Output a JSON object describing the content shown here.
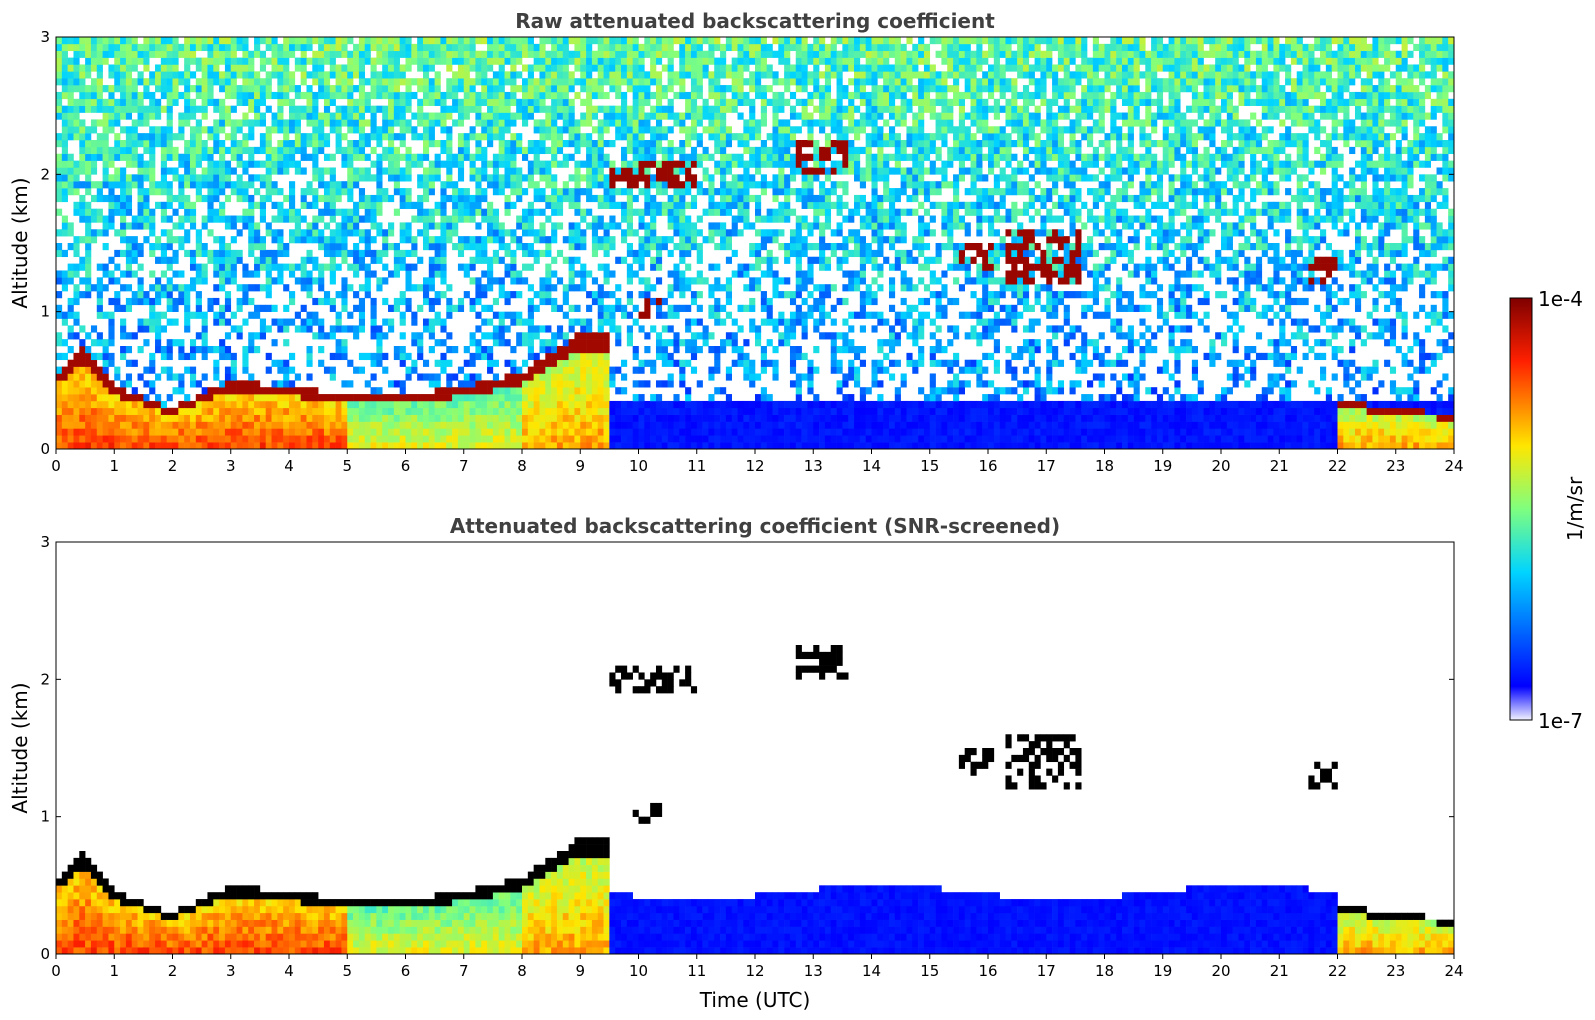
{
  "chart_data": [
    {
      "type": "heatmap",
      "title": "Raw attenuated backscattering coefficient",
      "xlabel": "",
      "ylabel": "Altitude (km)",
      "xlim": [
        0,
        24
      ],
      "ylim": [
        0,
        3
      ],
      "xticks": [
        "0",
        "1",
        "2",
        "3",
        "4",
        "5",
        "6",
        "7",
        "8",
        "9",
        "10",
        "11",
        "12",
        "13",
        "14",
        "15",
        "16",
        "17",
        "18",
        "19",
        "20",
        "21",
        "22",
        "23",
        "24"
      ],
      "yticks": [
        "0",
        "1",
        "2",
        "3"
      ],
      "screened": false,
      "features": [
        {
          "kind": "boundary_layer_top",
          "points": [
            [
              0,
              0.55
            ],
            [
              0.5,
              0.75
            ],
            [
              1,
              0.45
            ],
            [
              2,
              0.3
            ],
            [
              3,
              0.5
            ],
            [
              4,
              0.45
            ],
            [
              5,
              0.4
            ],
            [
              6,
              0.4
            ],
            [
              7,
              0.45
            ],
            [
              8,
              0.55
            ],
            [
              8.5,
              0.7
            ],
            [
              9,
              0.85
            ],
            [
              9.5,
              0.0
            ]
          ]
        },
        {
          "kind": "cloud_layer",
          "x": [
            9.5,
            11.0
          ],
          "y": [
            1.9,
            2.1
          ]
        },
        {
          "kind": "cloud_layer",
          "x": [
            12.7,
            13.6
          ],
          "y": [
            2.0,
            2.25
          ]
        },
        {
          "kind": "cloud_layer",
          "x": [
            16.3,
            17.6
          ],
          "y": [
            1.2,
            1.6
          ]
        },
        {
          "kind": "cloud_layer",
          "x": [
            21.5,
            22.0
          ],
          "y": [
            1.2,
            1.4
          ]
        },
        {
          "kind": "boundary_layer_top",
          "points": [
            [
              22,
              0.35
            ],
            [
              23,
              0.35
            ],
            [
              24,
              0.25
            ]
          ]
        }
      ]
    },
    {
      "type": "heatmap",
      "title": "Attenuated backscattering coefficient (SNR-screened)",
      "xlabel": "Time (UTC)",
      "ylabel": "Altitude (km)",
      "xlim": [
        0,
        24
      ],
      "ylim": [
        0,
        3
      ],
      "xticks": [
        "0",
        "1",
        "2",
        "3",
        "4",
        "5",
        "6",
        "7",
        "8",
        "9",
        "10",
        "11",
        "12",
        "13",
        "14",
        "15",
        "16",
        "17",
        "18",
        "19",
        "20",
        "21",
        "22",
        "23",
        "24"
      ],
      "yticks": [
        "0",
        "1",
        "2",
        "3"
      ],
      "screened": true
    }
  ],
  "colorbar": {
    "label": "1/m/sr",
    "max_label": "1e-4",
    "min_label": "1e-7",
    "colormap": "jet",
    "scale": "log"
  }
}
